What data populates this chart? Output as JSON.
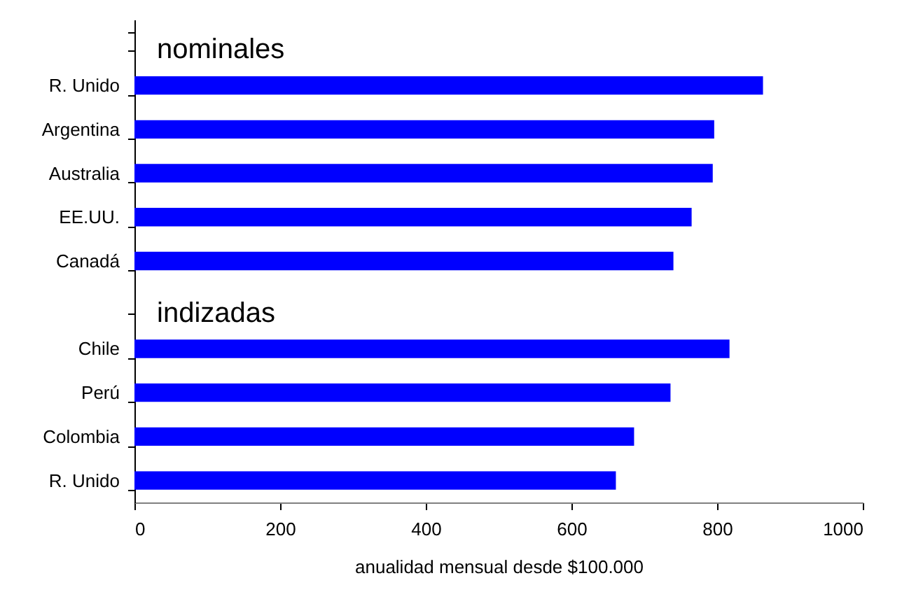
{
  "chart_data": {
    "type": "bar",
    "orientation": "horizontal",
    "xlabel": "anualidad mensual desde $100.000",
    "categories": [
      null,
      "R. Unido",
      "Argentina",
      "Australia",
      "EE.UU.",
      "Canadá",
      null,
      "Chile",
      "Perú",
      "Colombia",
      "R. Unido"
    ],
    "values": [
      null,
      863,
      796,
      794,
      765,
      740,
      null,
      817,
      736,
      686,
      661
    ],
    "color": "#0000ff",
    "xlim": [
      0,
      1000
    ],
    "xticks": [
      0,
      200,
      400,
      600,
      800,
      1000
    ],
    "grid": false,
    "annotations": [
      "nominales",
      "indizadas"
    ]
  }
}
